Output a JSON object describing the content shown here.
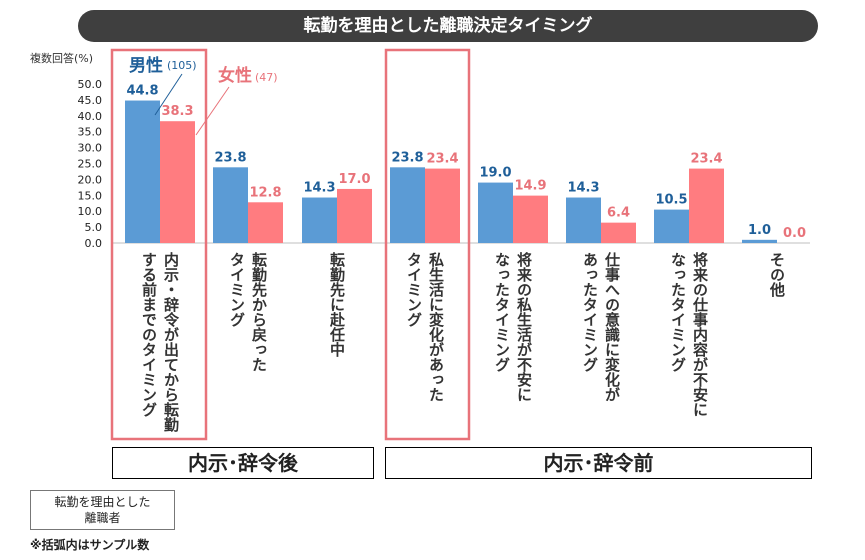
{
  "chart_data": {
    "type": "bar",
    "title": "転勤を理由とした離職決定タイミング",
    "ylabel": "複数回答(%)",
    "ylim": [
      0,
      50
    ],
    "yticks": [
      "0.0",
      "5.0",
      "10.0",
      "15.0",
      "20.0",
      "25.0",
      "30.0",
      "35.0",
      "40.0",
      "45.0",
      "50.0"
    ],
    "series": [
      {
        "name": "男性",
        "sample": "(105)",
        "color": "#5b9bd5",
        "label_color": "#1f5f99",
        "values": [
          44.8,
          23.8,
          14.3,
          23.8,
          19.0,
          14.3,
          10.5,
          1.0
        ],
        "labels": [
          "44.8",
          "23.8",
          "14.3",
          "23.8",
          "19.0",
          "14.3",
          "10.5",
          "1.0"
        ]
      },
      {
        "name": "女性",
        "sample": "(47)",
        "color": "#ff7c80",
        "label_color": "#e8737a",
        "values": [
          38.3,
          12.8,
          17.0,
          23.4,
          14.9,
          6.4,
          23.4,
          0.0
        ],
        "labels": [
          "38.3",
          "12.8",
          "17.0",
          "23.4",
          "14.9",
          "6.4",
          "23.4",
          "0.0"
        ]
      }
    ],
    "categories": [
      [
        "内示・辞令が出てから転勤",
        "する前までのタイミング"
      ],
      [
        "転勤先から戻った",
        "タイミング"
      ],
      [
        "転勤先に赴任中"
      ],
      [
        "私生活に変化があった",
        "タイミング"
      ],
      [
        "将来の私生活が不安に",
        "なったタイミング"
      ],
      [
        "仕事への意識に変化が",
        "あったタイミング"
      ],
      [
        "将来の仕事内容が不安に",
        "なったタイミング"
      ],
      [
        "その他"
      ]
    ],
    "groups": [
      {
        "label": "内示･辞令後"
      },
      {
        "label": "内示･辞令前"
      }
    ]
  },
  "respondents": [
    "転勤を理由とした",
    "離職者"
  ],
  "footnote": "※括弧内はサンプル数"
}
